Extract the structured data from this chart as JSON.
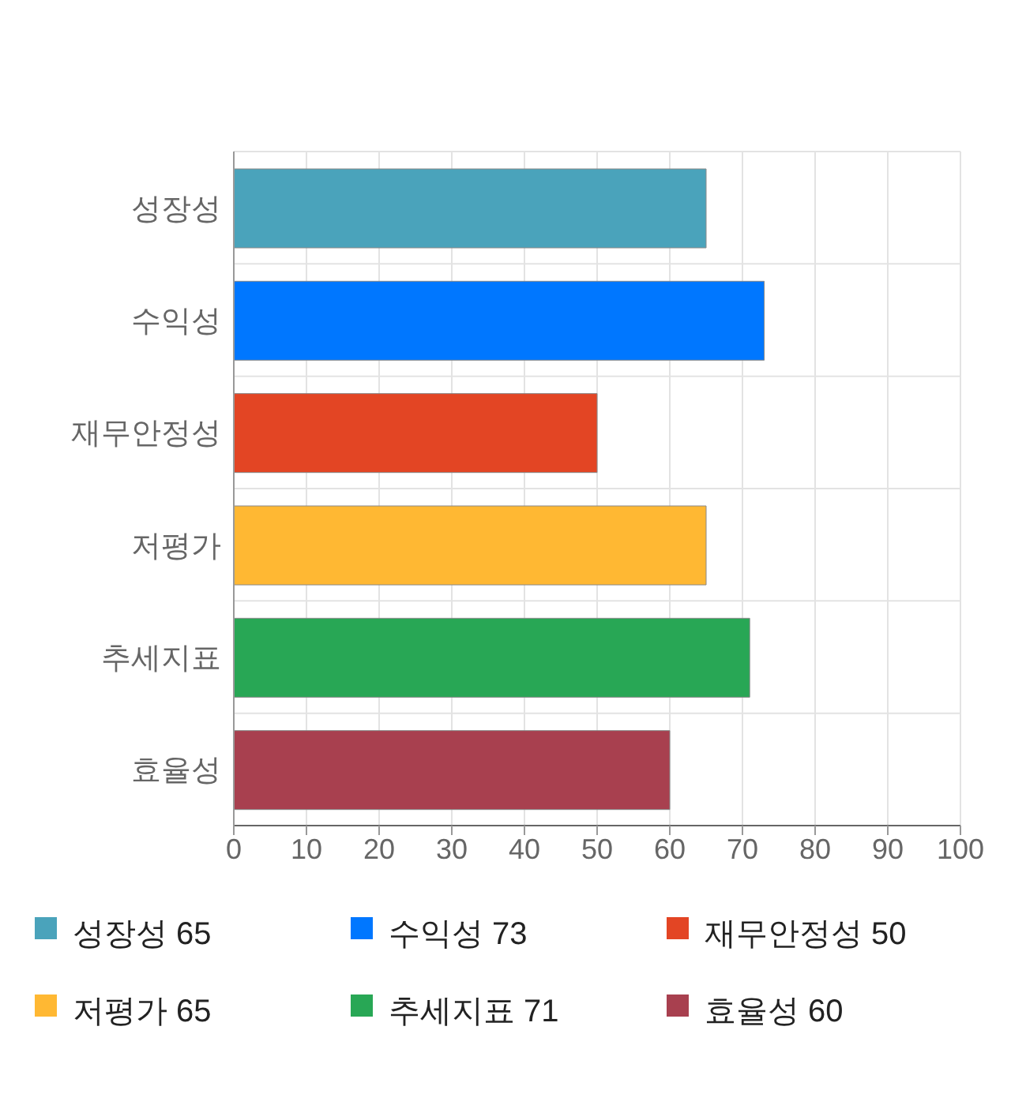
{
  "chart_data": {
    "type": "bar",
    "orientation": "horizontal",
    "stacked": true,
    "categories": [
      "성장성",
      "수익성",
      "재무안정성",
      "저평가",
      "추세지표",
      "효율성"
    ],
    "series": [
      {
        "name": "성장성 65",
        "color": "#4aa3bb",
        "values": [
          65,
          null,
          null,
          null,
          null,
          null
        ]
      },
      {
        "name": "수익성 73",
        "color": "#0077ff",
        "values": [
          null,
          73,
          null,
          null,
          null,
          null
        ]
      },
      {
        "name": "재무안정성 50",
        "color": "#e34524",
        "values": [
          null,
          null,
          50,
          null,
          null,
          null
        ]
      },
      {
        "name": "저평가 65",
        "color": "#ffb833",
        "values": [
          null,
          null,
          null,
          65,
          null,
          null
        ]
      },
      {
        "name": "추세지표 71",
        "color": "#28a755",
        "values": [
          null,
          null,
          null,
          null,
          71,
          null
        ]
      },
      {
        "name": "효율성 60",
        "color": "#a8404f",
        "values": [
          null,
          null,
          null,
          null,
          null,
          60
        ]
      }
    ],
    "xlim": [
      0,
      100
    ],
    "xticks": [
      0,
      10,
      20,
      30,
      40,
      50,
      60,
      70,
      80,
      90,
      100
    ],
    "grid": true,
    "legend": "bottom"
  }
}
